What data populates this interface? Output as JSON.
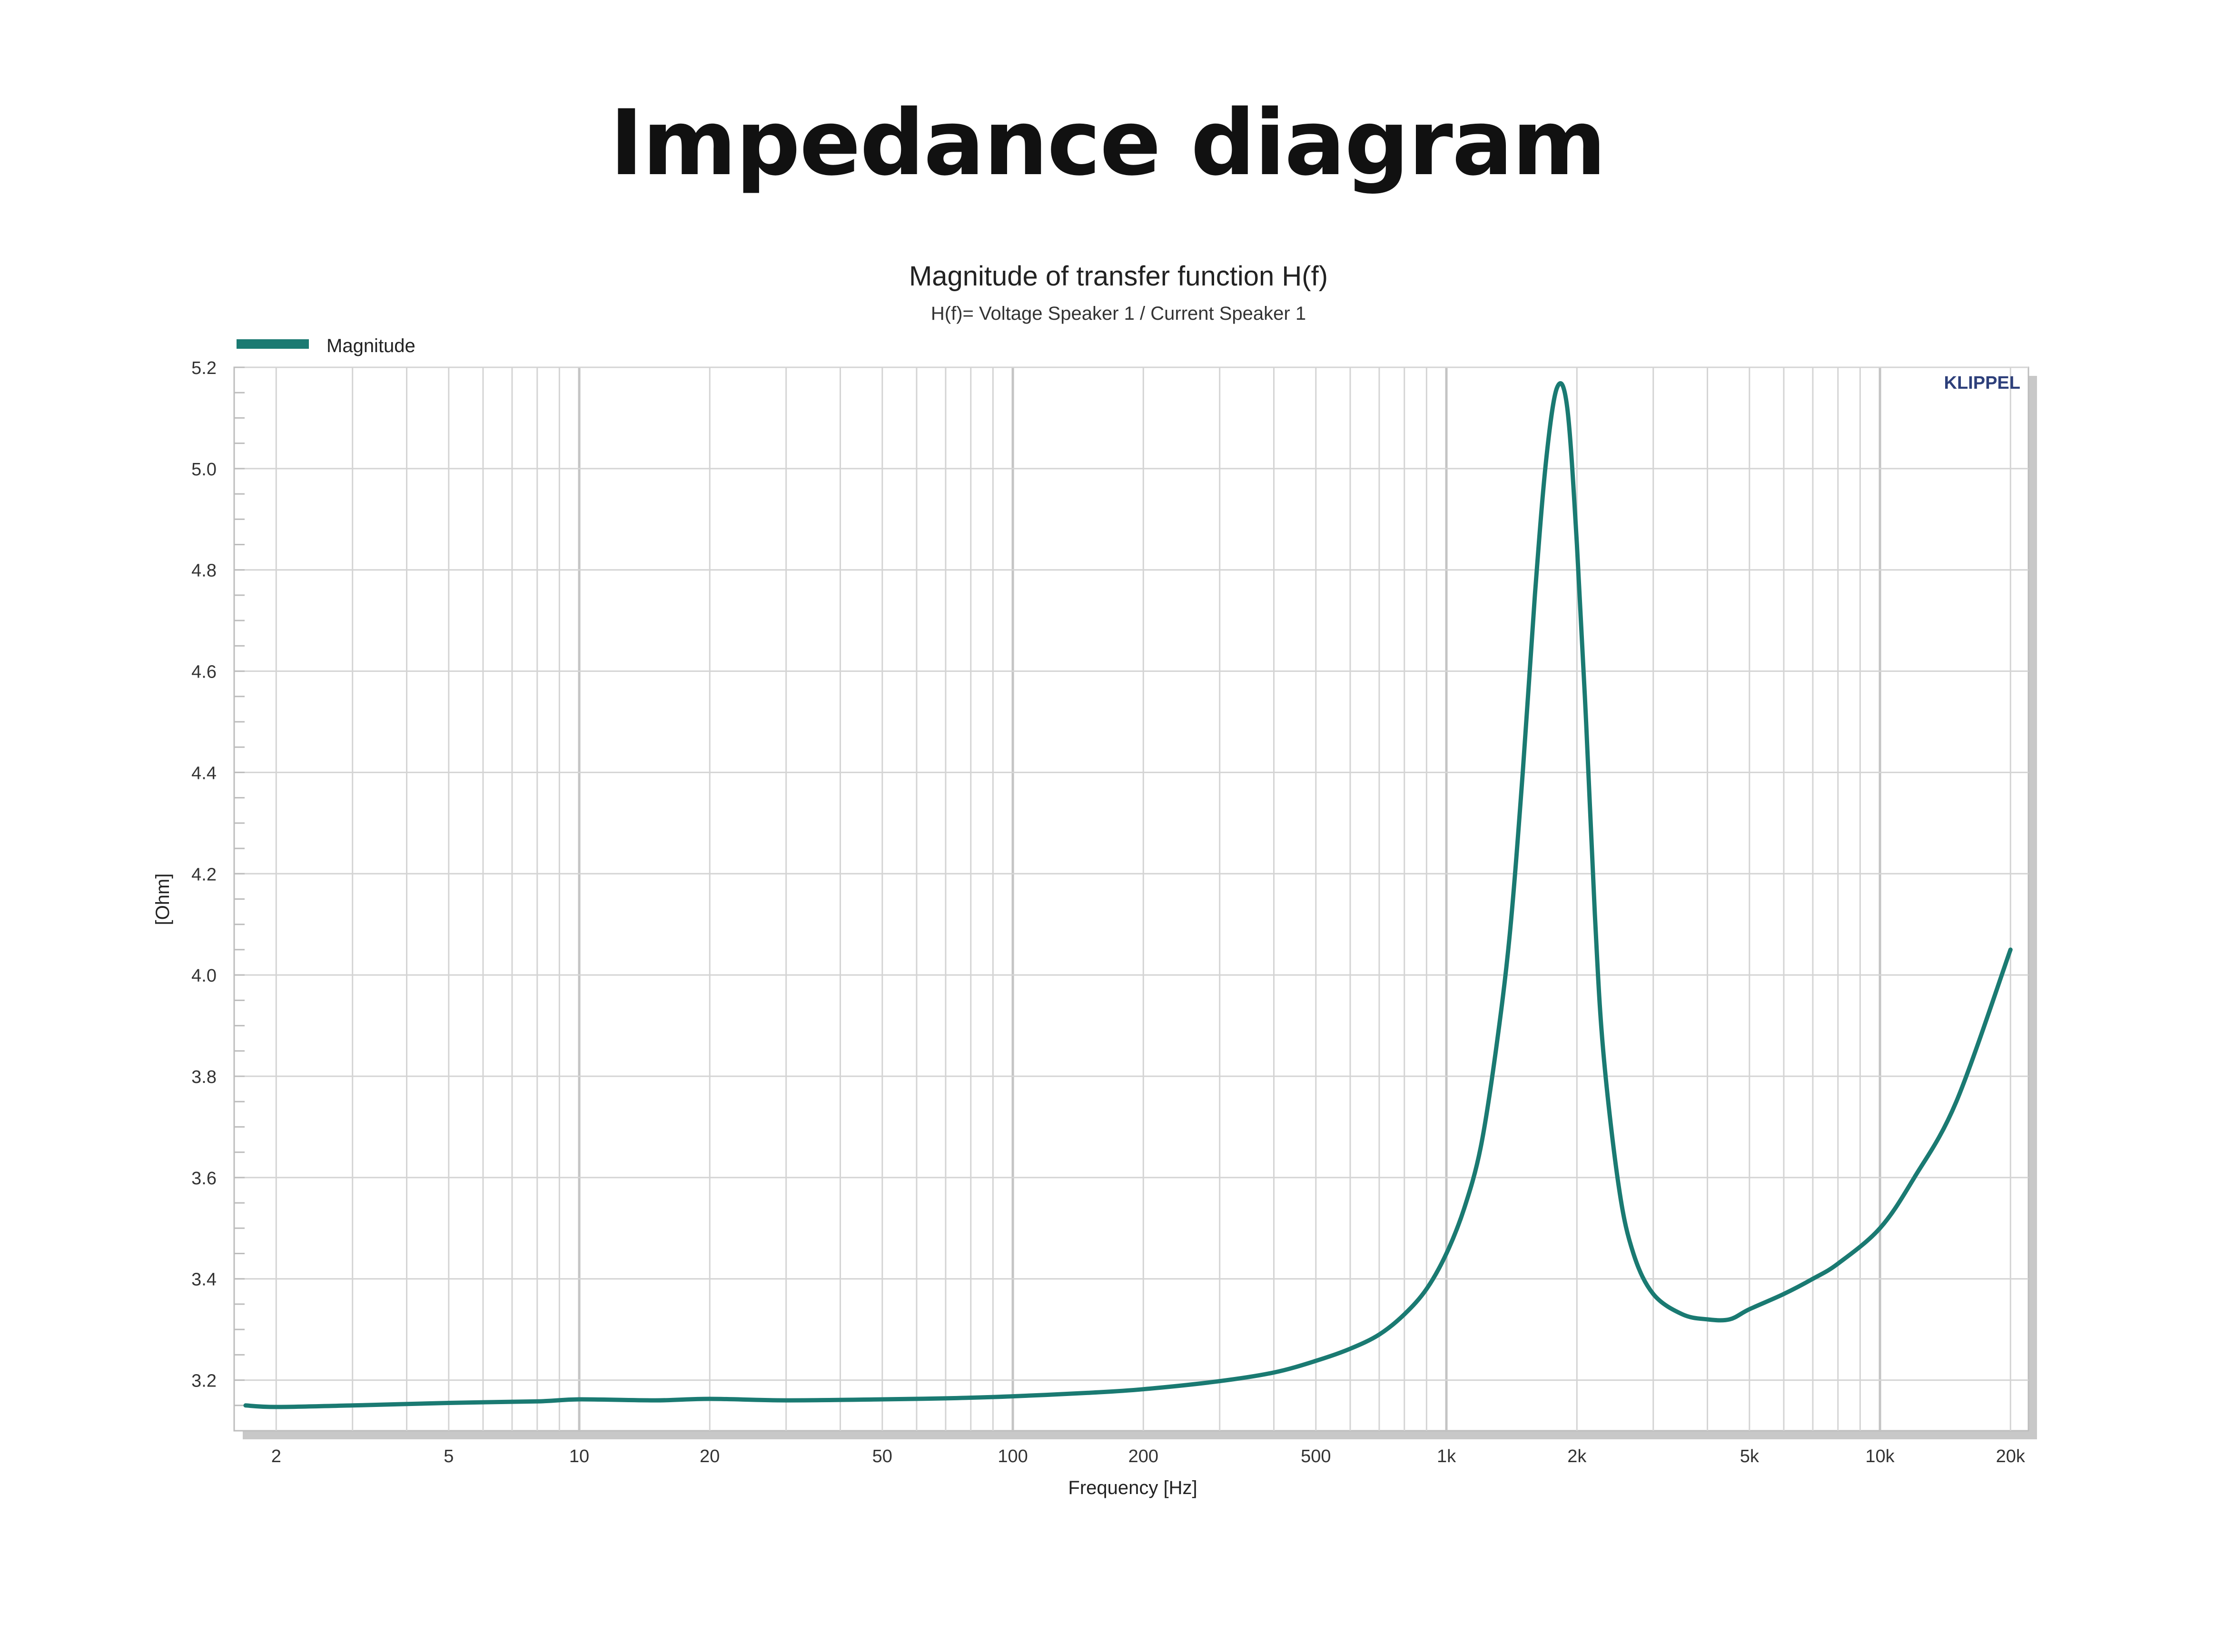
{
  "page": {
    "title": "Impedance diagram"
  },
  "chart_data": {
    "type": "line",
    "title": "Magnitude of transfer function H(f)",
    "subtitle": "H(f)= Voltage Speaker 1 / Current Speaker 1",
    "xlabel": "Frequency [Hz]",
    "ylabel": "[Ohm]",
    "watermark": "KLIPPEL",
    "xscale": "log",
    "xlim": [
      1.6,
      22000
    ],
    "ylim": [
      3.1,
      5.2
    ],
    "grid": true,
    "legend_position": "top-left",
    "x_ticks": [
      2,
      5,
      10,
      20,
      50,
      100,
      200,
      500,
      1000,
      2000,
      5000,
      10000,
      20000
    ],
    "x_tick_labels": [
      "2",
      "5",
      "10",
      "20",
      "50",
      "100",
      "200",
      "500",
      "1k",
      "2k",
      "5k",
      "10k",
      "20k"
    ],
    "y_ticks": [
      3.2,
      3.4,
      3.6,
      3.8,
      4.0,
      4.2,
      4.4,
      4.6,
      4.8,
      5.0,
      5.2
    ],
    "y_tick_labels": [
      "3.2",
      "3.4",
      "3.6",
      "3.8",
      "4.0",
      "4.2",
      "4.4",
      "4.6",
      "4.8",
      "5.0",
      "5.2"
    ],
    "colors": {
      "series": "#1a7a72",
      "grid": "#d4d4d4",
      "grid_major": "#c4c4c4",
      "watermark": "#2d3f7a",
      "shadow": "#c8c8c8"
    },
    "series": [
      {
        "name": "Magnitude",
        "x": [
          1.7,
          2,
          3,
          5,
          8,
          10,
          15,
          20,
          30,
          50,
          70,
          100,
          150,
          200,
          300,
          400,
          500,
          600,
          700,
          800,
          900,
          1000,
          1100,
          1200,
          1300,
          1400,
          1500,
          1600,
          1700,
          1800,
          1900,
          2000,
          2100,
          2200,
          2300,
          2500,
          2700,
          3000,
          3500,
          4000,
          4500,
          5000,
          6000,
          7000,
          8000,
          10000,
          12000,
          15000,
          20000
        ],
        "y": [
          3.15,
          3.147,
          3.15,
          3.155,
          3.158,
          3.162,
          3.16,
          3.163,
          3.16,
          3.162,
          3.164,
          3.168,
          3.175,
          3.182,
          3.198,
          3.215,
          3.238,
          3.262,
          3.29,
          3.33,
          3.38,
          3.45,
          3.54,
          3.66,
          3.85,
          4.08,
          4.4,
          4.75,
          5.02,
          5.16,
          5.12,
          4.85,
          4.5,
          4.12,
          3.85,
          3.58,
          3.45,
          3.37,
          3.33,
          3.32,
          3.32,
          3.34,
          3.37,
          3.4,
          3.43,
          3.5,
          3.6,
          3.75,
          4.05
        ]
      }
    ]
  }
}
